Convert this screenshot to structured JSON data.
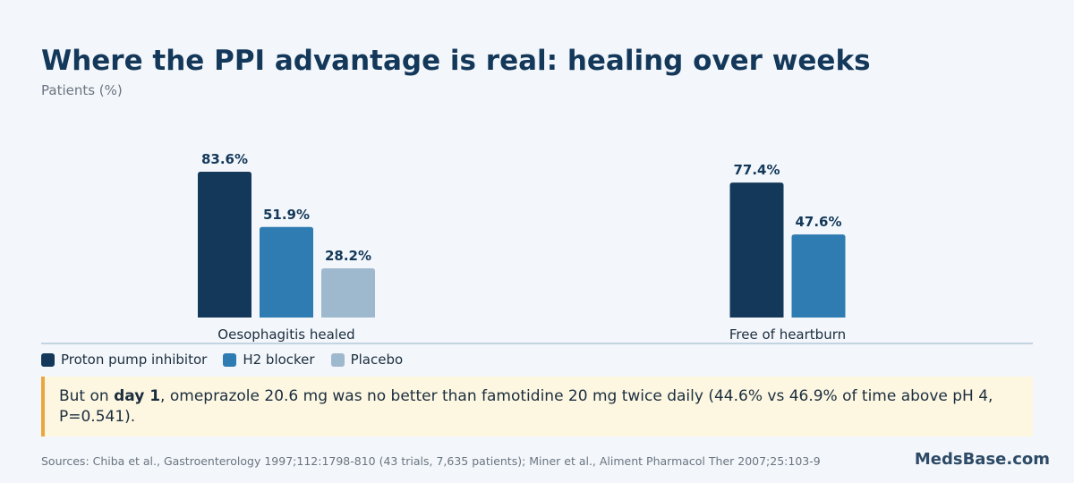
{
  "title": "Where the PPI advantage is real: healing over weeks",
  "subtitle": "Patients (%)",
  "legend": [
    {
      "label": "Proton pump inhibitor",
      "color": "#14385a"
    },
    {
      "label": "H2 blocker",
      "color": "#2e7cb2"
    },
    {
      "label": "Placebo",
      "color": "#9eb8cd"
    }
  ],
  "chart_data": {
    "type": "bar",
    "categories": [
      "Oesophagitis healed",
      "Free of heartburn"
    ],
    "series": [
      {
        "name": "Proton pump inhibitor",
        "values": [
          83.6,
          77.4
        ],
        "labels": [
          "83.6%",
          "77.4%"
        ],
        "color": "#14385a"
      },
      {
        "name": "H2 blocker",
        "values": [
          51.9,
          47.6
        ],
        "labels": [
          "51.9%",
          "47.6%"
        ],
        "color": "#2e7cb2"
      },
      {
        "name": "Placebo",
        "values": [
          28.2,
          null
        ],
        "labels": [
          "28.2%",
          null
        ],
        "color": "#9eb8cd"
      }
    ],
    "ylabel": "Patients (%)",
    "ylim": [
      0,
      100
    ],
    "grid": false,
    "legend_position": "bottom-left"
  },
  "callout": {
    "prefix": "But on ",
    "emphasis": "day 1",
    "suffix": ", omeprazole 20.6 mg was no better than famotidine 20 mg twice daily (44.6% vs 46.9% of time above pH 4, P=0.541)."
  },
  "sources": "Sources: Chiba et al., Gastroenterology 1997;112:1798-810 (43 trials, 7,635 patients); Miner et al., Aliment Pharmacol Ther 2007;25:103-9",
  "brand": "MedsBase.com",
  "colors": {
    "accent": "#eba63f",
    "callout_bg": "#fdf7e2",
    "axis": "#c3d3e0"
  }
}
